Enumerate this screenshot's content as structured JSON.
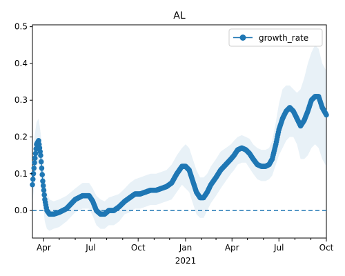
{
  "chart_data": {
    "type": "line",
    "title": "AL",
    "xlabel": "2021",
    "ylabel": "",
    "xlim": [
      "2020-03-10",
      "2021-10-01"
    ],
    "ylim": [
      -0.075,
      0.505
    ],
    "x_ticks_major": [
      {
        "date": "2020-04-01",
        "label": "Apr"
      },
      {
        "date": "2020-07-01",
        "label": "Jul"
      },
      {
        "date": "2020-10-01",
        "label": "Oct"
      },
      {
        "date": "2021-01-01",
        "label": "Jan"
      },
      {
        "date": "2021-04-01",
        "label": "Apr"
      },
      {
        "date": "2021-07-01",
        "label": "Jul"
      },
      {
        "date": "2021-10-01",
        "label": "Oct"
      }
    ],
    "x_ticks_minor": [
      "2020-05-01",
      "2020-06-01",
      "2020-08-01",
      "2020-09-01",
      "2020-11-01",
      "2020-12-01",
      "2021-02-01",
      "2021-03-01",
      "2021-05-01",
      "2021-06-01",
      "2021-08-01",
      "2021-09-01"
    ],
    "y_ticks": [
      0.0,
      0.1,
      0.2,
      0.3,
      0.4,
      0.5
    ],
    "y_tick_labels": [
      "0.0",
      "0.1",
      "0.2",
      "0.3",
      "0.4",
      "0.5"
    ],
    "legend": {
      "position": "top-right",
      "entries": [
        "growth_rate"
      ]
    },
    "reference_line": {
      "y": 0.0,
      "style": "dashed",
      "color": "#1f77b4"
    },
    "series": [
      {
        "name": "growth_rate",
        "color": "#1f77b4",
        "marker": "circle",
        "x": [
          "2020-03-10",
          "2020-03-14",
          "2020-03-18",
          "2020-03-22",
          "2020-03-26",
          "2020-03-30",
          "2020-04-03",
          "2020-04-07",
          "2020-04-12",
          "2020-04-20",
          "2020-05-01",
          "2020-05-15",
          "2020-06-01",
          "2020-06-15",
          "2020-06-28",
          "2020-07-05",
          "2020-07-12",
          "2020-07-20",
          "2020-07-28",
          "2020-08-05",
          "2020-08-15",
          "2020-08-25",
          "2020-09-05",
          "2020-09-15",
          "2020-09-25",
          "2020-10-05",
          "2020-10-15",
          "2020-10-25",
          "2020-11-05",
          "2020-11-15",
          "2020-11-25",
          "2020-12-05",
          "2020-12-15",
          "2020-12-25",
          "2021-01-01",
          "2021-01-08",
          "2021-01-15",
          "2021-01-22",
          "2021-01-29",
          "2021-02-05",
          "2021-02-12",
          "2021-02-19",
          "2021-03-01",
          "2021-03-10",
          "2021-03-20",
          "2021-03-30",
          "2021-04-05",
          "2021-04-12",
          "2021-04-20",
          "2021-04-28",
          "2021-05-05",
          "2021-05-12",
          "2021-05-20",
          "2021-05-28",
          "2021-06-05",
          "2021-06-12",
          "2021-06-18",
          "2021-06-25",
          "2021-07-01",
          "2021-07-08",
          "2021-07-15",
          "2021-07-22",
          "2021-07-29",
          "2021-08-05",
          "2021-08-12",
          "2021-08-19",
          "2021-08-26",
          "2021-09-02",
          "2021-09-09",
          "2021-09-16",
          "2021-09-23",
          "2021-10-01"
        ],
        "y": [
          0.07,
          0.13,
          0.18,
          0.19,
          0.15,
          0.08,
          0.03,
          0.0,
          -0.01,
          -0.01,
          -0.005,
          0.005,
          0.03,
          0.04,
          0.04,
          0.025,
          0.0,
          -0.01,
          -0.01,
          0.0,
          0.0,
          0.01,
          0.025,
          0.035,
          0.045,
          0.045,
          0.05,
          0.055,
          0.055,
          0.06,
          0.065,
          0.075,
          0.1,
          0.12,
          0.12,
          0.11,
          0.08,
          0.05,
          0.035,
          0.035,
          0.05,
          0.07,
          0.09,
          0.11,
          0.125,
          0.14,
          0.15,
          0.165,
          0.17,
          0.165,
          0.155,
          0.14,
          0.125,
          0.12,
          0.12,
          0.125,
          0.14,
          0.18,
          0.22,
          0.25,
          0.27,
          0.28,
          0.27,
          0.25,
          0.23,
          0.245,
          0.27,
          0.3,
          0.31,
          0.31,
          0.28,
          0.26
        ],
        "ci_upper": [
          0.12,
          0.2,
          0.24,
          0.25,
          0.21,
          0.15,
          0.09,
          0.05,
          0.03,
          0.025,
          0.03,
          0.04,
          0.06,
          0.075,
          0.075,
          0.06,
          0.04,
          0.03,
          0.025,
          0.035,
          0.04,
          0.045,
          0.06,
          0.075,
          0.085,
          0.09,
          0.095,
          0.1,
          0.1,
          0.105,
          0.11,
          0.125,
          0.15,
          0.17,
          0.18,
          0.17,
          0.14,
          0.11,
          0.09,
          0.09,
          0.1,
          0.12,
          0.14,
          0.16,
          0.17,
          0.18,
          0.19,
          0.2,
          0.205,
          0.2,
          0.195,
          0.18,
          0.17,
          0.165,
          0.165,
          0.17,
          0.19,
          0.24,
          0.29,
          0.33,
          0.34,
          0.34,
          0.33,
          0.32,
          0.33,
          0.36,
          0.4,
          0.43,
          0.45,
          0.44,
          0.4,
          0.38
        ],
        "ci_lower": [
          0.02,
          0.07,
          0.12,
          0.13,
          0.09,
          0.02,
          -0.03,
          -0.05,
          -0.055,
          -0.05,
          -0.045,
          -0.03,
          -0.005,
          0.005,
          0.005,
          -0.015,
          -0.04,
          -0.05,
          -0.05,
          -0.04,
          -0.04,
          -0.03,
          -0.01,
          -0.005,
          0.005,
          0.005,
          0.01,
          0.015,
          0.015,
          0.02,
          0.025,
          0.03,
          0.05,
          0.07,
          0.06,
          0.05,
          0.02,
          -0.01,
          -0.02,
          -0.02,
          0.0,
          0.02,
          0.04,
          0.06,
          0.08,
          0.1,
          0.11,
          0.125,
          0.13,
          0.13,
          0.115,
          0.1,
          0.085,
          0.08,
          0.08,
          0.085,
          0.095,
          0.125,
          0.15,
          0.17,
          0.19,
          0.2,
          0.2,
          0.18,
          0.14,
          0.14,
          0.15,
          0.17,
          0.18,
          0.17,
          0.14,
          0.12
        ]
      }
    ]
  }
}
